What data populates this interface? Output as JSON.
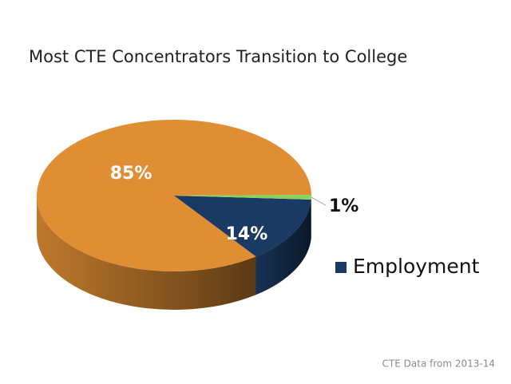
{
  "chart_data": {
    "type": "pie",
    "title": "Most CTE Concentrators Transition to College",
    "categories": [
      null,
      "Employment",
      null
    ],
    "values": [
      85,
      14,
      1
    ],
    "value_labels": [
      "85%",
      "14%",
      "1%"
    ],
    "colors": [
      "#e08e33",
      "#1b3a63",
      "#86d35e"
    ],
    "legend": "right",
    "source": "CTE Data from 2013-14"
  }
}
